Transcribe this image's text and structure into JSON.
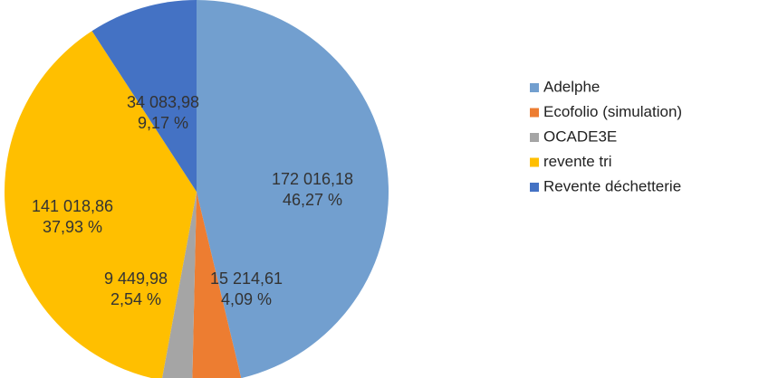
{
  "chart_data": {
    "type": "pie",
    "categories": [
      "Adelphe",
      "Ecofolio (simulation)",
      "OCADE3E",
      "revente tri",
      "Revente déchetterie"
    ],
    "values": [
      172016.18,
      15214.61,
      9449.98,
      141018.86,
      34083.98
    ],
    "value_labels": [
      "172 016,18",
      "15 214,61",
      "9 449,98",
      "141 018,86",
      "34 083,98"
    ],
    "percents": [
      46.27,
      4.09,
      2.54,
      37.93,
      9.17
    ],
    "percent_labels": [
      "46,27 %",
      "4,09 %",
      "2,54 %",
      "37,93 %",
      "9,17 %"
    ],
    "colors": [
      "#729fcf",
      "#ed7d31",
      "#a5a5a5",
      "#ffbf00",
      "#4472c4"
    ],
    "legend": "right"
  }
}
